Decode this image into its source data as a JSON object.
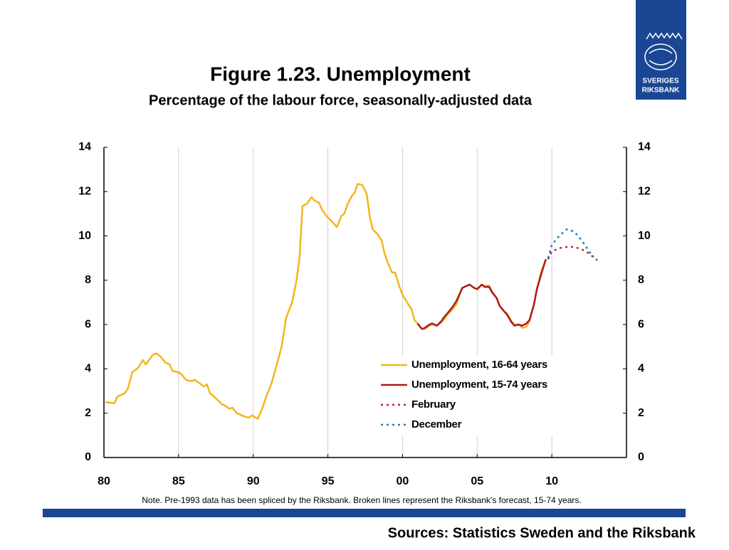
{
  "logo": {
    "line1": "SVERIGES",
    "line2": "RIKSBANK"
  },
  "chart_data": {
    "type": "line",
    "title": "Figure 1.23. Unemployment",
    "subtitle": "Percentage of the labour force, seasonally-adjusted data",
    "note": "Note. Pre-1993 data has been spliced by the Riksbank. Broken lines represent the Riksbank’s forecast, 15-74 years.",
    "source": "Sources: Statistics Sweden and the Riksbank",
    "xlim": [
      1980,
      2015
    ],
    "xticks": [
      {
        "value": 1980,
        "label": "80"
      },
      {
        "value": 1985,
        "label": "85"
      },
      {
        "value": 1990,
        "label": "90"
      },
      {
        "value": 1995,
        "label": "95"
      },
      {
        "value": 2000,
        "label": "00"
      },
      {
        "value": 2005,
        "label": "05"
      },
      {
        "value": 2010,
        "label": "10"
      }
    ],
    "ylim": [
      0,
      14
    ],
    "yticks": [
      0,
      2,
      4,
      6,
      8,
      10,
      12,
      14
    ],
    "y2lim": [
      0,
      14
    ],
    "y2ticks": [
      0,
      2,
      4,
      6,
      8,
      10,
      12,
      14
    ],
    "grid": "x",
    "legend": "lower right",
    "series": [
      {
        "name": "Unemployment, 16-64 years",
        "color": "#f4b51c",
        "dash": false,
        "x": [
          1980.1,
          1980.7,
          1980.9,
          1981.4,
          1981.6,
          1981.9,
          1982.3,
          1982.6,
          1982.8,
          1983.3,
          1983.5,
          1983.8,
          1984.1,
          1984.4,
          1984.6,
          1985.0,
          1985.2,
          1985.5,
          1985.8,
          1986.1,
          1986.4,
          1986.7,
          1986.9,
          1987.1,
          1987.3,
          1987.6,
          1987.9,
          1988.1,
          1988.4,
          1988.6,
          1988.9,
          1989.1,
          1989.4,
          1989.7,
          1989.9,
          1990.3,
          1990.6,
          1990.9,
          1991.2,
          1991.5,
          1991.9,
          1992.2,
          1992.6,
          1992.9,
          1993.1,
          1993.3,
          1993.6,
          1993.9,
          1994.1,
          1994.4,
          1994.6,
          1994.9,
          1995.2,
          1995.4,
          1995.6,
          1995.9,
          1996.1,
          1996.3,
          1996.6,
          1996.8,
          1997.0,
          1997.3,
          1997.6,
          1997.8,
          1998.0,
          1998.3,
          1998.6,
          1998.8,
          1999.0,
          1999.3,
          1999.5,
          1999.8,
          2000.0,
          2000.3,
          2000.6,
          2000.8,
          2001.0,
          2001.3,
          2001.5,
          2001.8,
          2002.0,
          2002.3,
          2002.6,
          2002.8,
          2003.0,
          2003.3,
          2003.6,
          2003.8,
          2004.0,
          2004.3,
          2004.5,
          2004.8,
          2005.0,
          2005.3,
          2005.5,
          2005.8,
          2006.0,
          2006.3,
          2006.5,
          2006.8,
          2007.0,
          2007.3,
          2007.5,
          2007.8,
          2008.0,
          2008.3,
          2008.5,
          2008.8,
          2009.0,
          2009.3,
          2009.6
        ],
        "values": [
          2.5,
          2.45,
          2.75,
          2.9,
          3.1,
          3.85,
          4.05,
          4.4,
          4.2,
          4.65,
          4.7,
          4.55,
          4.3,
          4.2,
          3.9,
          3.85,
          3.75,
          3.5,
          3.45,
          3.5,
          3.35,
          3.2,
          3.3,
          2.9,
          2.8,
          2.6,
          2.4,
          2.35,
          2.2,
          2.25,
          2.0,
          1.95,
          1.85,
          1.8,
          1.9,
          1.75,
          2.2,
          2.8,
          3.3,
          4.0,
          5.0,
          6.3,
          7.0,
          8.0,
          9.0,
          11.35,
          11.45,
          11.75,
          11.6,
          11.5,
          11.2,
          10.9,
          10.7,
          10.55,
          10.4,
          10.9,
          11.0,
          11.4,
          11.8,
          11.95,
          12.35,
          12.3,
          11.9,
          10.9,
          10.3,
          10.1,
          9.8,
          9.2,
          8.8,
          8.35,
          8.35,
          7.7,
          7.35,
          7.0,
          6.7,
          6.2,
          6.05,
          5.8,
          5.8,
          5.95,
          6.0,
          5.95,
          6.1,
          6.25,
          6.45,
          6.65,
          6.9,
          7.3,
          7.65,
          7.75,
          7.8,
          7.65,
          7.6,
          7.8,
          7.75,
          7.75,
          7.5,
          7.2,
          6.85,
          6.6,
          6.5,
          6.15,
          6.0,
          6.0,
          5.85,
          5.9,
          6.15,
          6.9,
          7.6,
          8.4,
          8.95
        ]
      },
      {
        "name": "Unemployment, 15-74 years",
        "color": "#a91d1d",
        "dash": false,
        "x": [
          2001.0,
          2001.3,
          2001.5,
          2001.8,
          2002.0,
          2002.3,
          2002.6,
          2002.8,
          2003.0,
          2003.3,
          2003.6,
          2003.8,
          2004.0,
          2004.3,
          2004.5,
          2004.8,
          2005.0,
          2005.3,
          2005.5,
          2005.8,
          2006.0,
          2006.3,
          2006.5,
          2006.8,
          2007.0,
          2007.3,
          2007.5,
          2007.8,
          2008.0,
          2008.3,
          2008.5,
          2008.8,
          2009.0,
          2009.3,
          2009.6
        ],
        "values": [
          6.05,
          5.8,
          5.85,
          6.0,
          6.05,
          5.95,
          6.15,
          6.35,
          6.5,
          6.75,
          7.05,
          7.35,
          7.65,
          7.75,
          7.8,
          7.65,
          7.6,
          7.8,
          7.7,
          7.7,
          7.45,
          7.2,
          6.85,
          6.6,
          6.45,
          6.1,
          5.95,
          6.0,
          5.95,
          6.05,
          6.2,
          6.9,
          7.6,
          8.3,
          8.95
        ]
      },
      {
        "name": "February",
        "color": "#c0262b",
        "dash": true,
        "x": [
          2009.75,
          2010.0,
          2010.5,
          2011.0,
          2011.5,
          2012.0,
          2012.5,
          2013.05
        ],
        "values": [
          8.95,
          9.3,
          9.45,
          9.5,
          9.5,
          9.4,
          9.2,
          8.9
        ]
      },
      {
        "name": "December",
        "color": "#1c80bf",
        "dash": true,
        "x": [
          2009.75,
          2010.0,
          2010.5,
          2011.0,
          2011.5,
          2012.0,
          2012.5,
          2012.8
        ],
        "values": [
          9.0,
          9.6,
          10.0,
          10.3,
          10.2,
          9.8,
          9.3,
          9.05
        ]
      }
    ]
  }
}
